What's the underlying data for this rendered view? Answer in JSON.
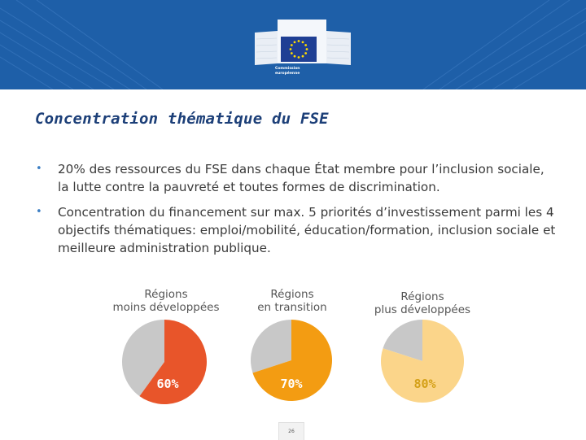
{
  "header": {
    "logo_caption_line1": "Commission",
    "logo_caption_line2": "européenne"
  },
  "title": "Concentration thématique du FSE",
  "bullets": [
    "20% des ressources du FSE dans chaque État membre pour l’inclusion sociale, la lutte contre la pauvreté et toutes formes de discrimination.",
    "Concentration du financement sur max. 5 priorités d’investissement parmi les 4 objectifs thématiques: emploi/mobilité, éducation/formation, inclusion sociale et meilleure administration publique."
  ],
  "chart_data": [
    {
      "type": "pie",
      "title_line1": "Régions",
      "title_line2": "moins développées",
      "value": 60,
      "label": "60%",
      "color": "#e8552a",
      "rest_color": "#c8c8c8"
    },
    {
      "type": "pie",
      "title_line1": "Régions",
      "title_line2": "en transition",
      "value": 70,
      "label": "70%",
      "color": "#f39c12",
      "rest_color": "#c8c8c8"
    },
    {
      "type": "pie",
      "title_line1": "Régions",
      "title_line2": "plus développées",
      "value": 80,
      "label": "80%",
      "color": "#fbd58a",
      "rest_color": "#c8c8c8"
    }
  ],
  "footer": {
    "page_number": "26"
  }
}
